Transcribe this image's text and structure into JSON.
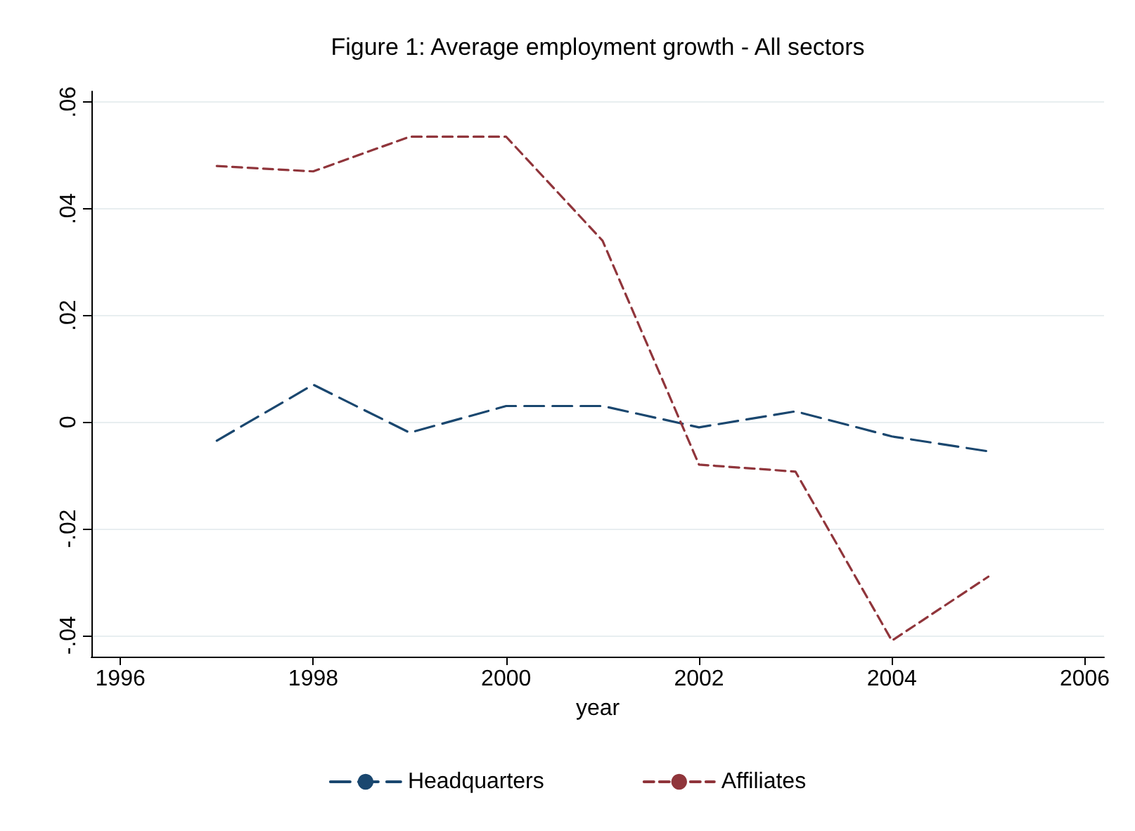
{
  "chart_data": {
    "type": "line",
    "title": "Figure 1: Average employment growth - All sectors",
    "xlabel": "year",
    "x": [
      1997,
      1998,
      1999,
      2000,
      2001,
      2002,
      2003,
      2004,
      2005
    ],
    "series": [
      {
        "name": "Headquarters",
        "color": "#1a476f",
        "line_style": "dashed",
        "values": [
          -0.0035,
          0.007,
          -0.002,
          0.003,
          0.003,
          -0.001,
          0.002,
          -0.0027,
          -0.0055
        ]
      },
      {
        "name": "Affiliates",
        "color": "#90353b",
        "line_style": "dotted",
        "values": [
          0.048,
          0.047,
          0.0535,
          0.0535,
          0.034,
          -0.008,
          -0.0093,
          -0.041,
          -0.029
        ]
      }
    ],
    "xlim": [
      1995.7,
      2006.2
    ],
    "xticks": [
      1996,
      1998,
      2000,
      2002,
      2004,
      2006
    ],
    "ylim": [
      -0.044,
      0.062
    ],
    "yticks": [
      {
        "value": -0.04,
        "label": "-.04"
      },
      {
        "value": -0.02,
        "label": "-.02"
      },
      0,
      {
        "value": 0.02,
        "label": ".02"
      },
      {
        "value": 0.04,
        "label": ".04"
      },
      {
        "value": 0.06,
        "label": ".06"
      }
    ],
    "grid": "y",
    "legend": "bottom",
    "marker": "none"
  }
}
